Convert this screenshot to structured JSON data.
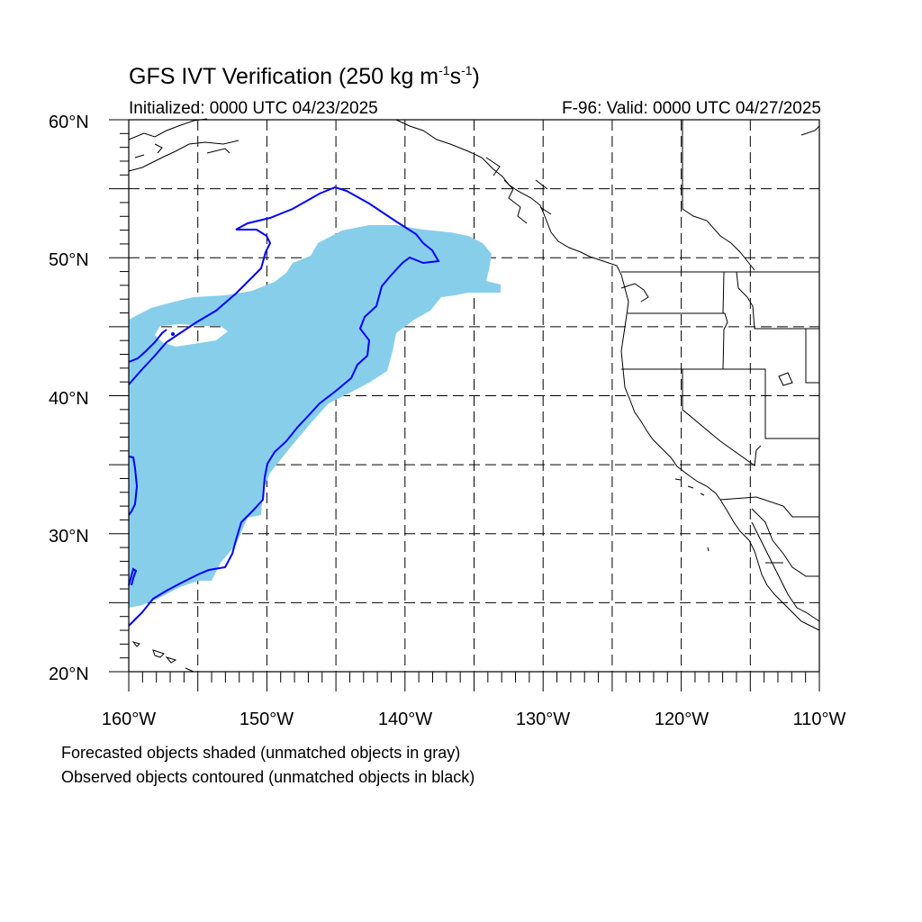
{
  "title": {
    "main": "GFS IVT Verification (250 kg m",
    "exp1": "-1",
    "mid": "s",
    "exp2": "-1",
    "close": ")"
  },
  "subtitle": {
    "initialized": "Initialized: 0000 UTC 04/23/2025",
    "valid": "F-96: Valid: 0000 UTC 04/27/2025"
  },
  "axes": {
    "lat_labels": [
      "60°N",
      "50°N",
      "40°N",
      "30°N",
      "20°N"
    ],
    "lon_labels": [
      "160°W",
      "150°W",
      "140°W",
      "130°W",
      "120°W",
      "110°W"
    ],
    "lat_range": [
      20,
      60
    ],
    "lon_range": [
      -160,
      -110
    ],
    "grid": "dashed"
  },
  "legend": {
    "line1": "Forecasted objects shaded (unmatched objects in gray)",
    "line2": "Observed objects contoured (unmatched objects in black)"
  },
  "colors": {
    "forecast_fill": "#87CEEB",
    "observed_contour": "#0000FF",
    "coastline": "#000000",
    "grid": "#000000"
  }
}
